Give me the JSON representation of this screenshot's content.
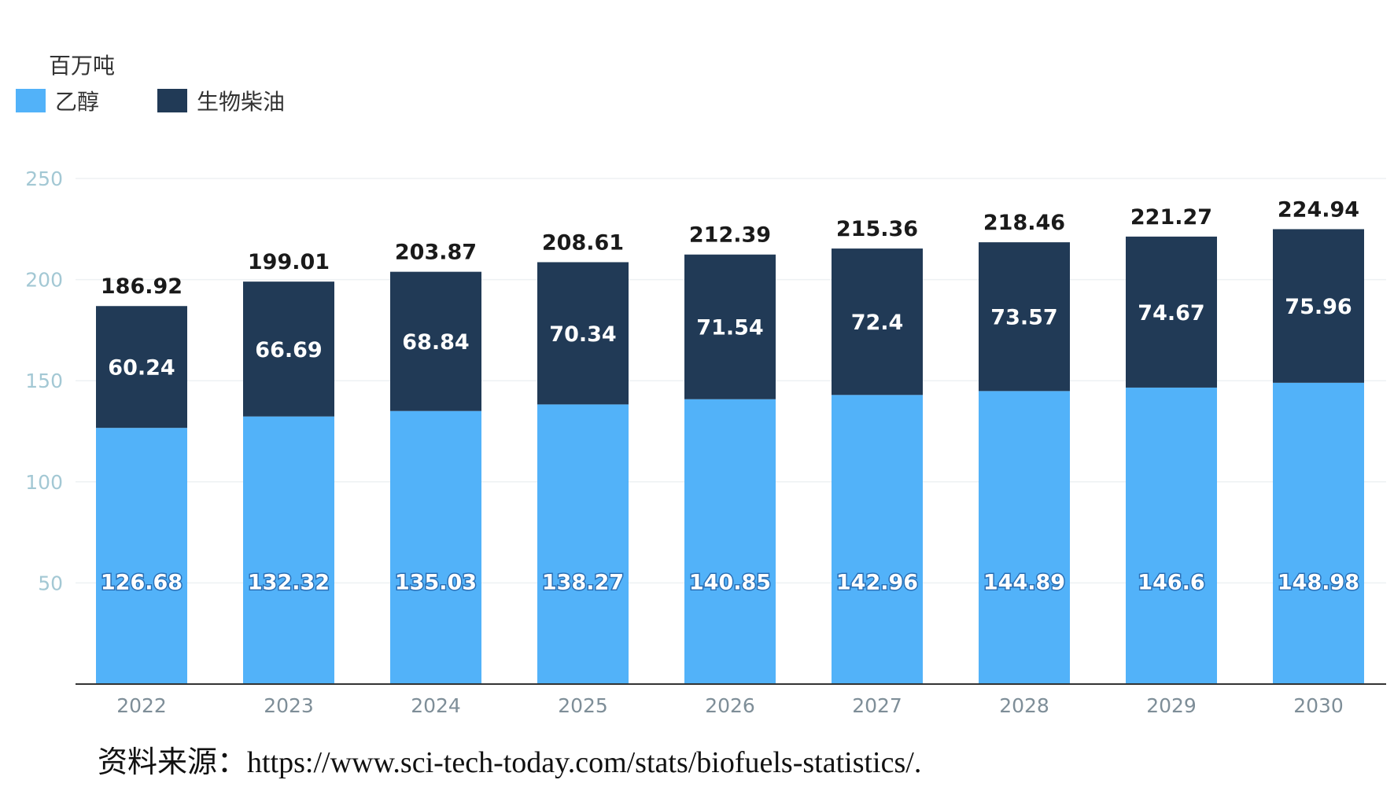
{
  "unit_label": "百万吨",
  "source_text": "资料来源：https://www.sci-tech-today.com/stats/biofuels-statistics/.",
  "colors": {
    "ethanol": "#52b2f9",
    "biodiesel": "#213a56",
    "gridline": "#eef1f3",
    "baseline": "#333333"
  },
  "chart_data": {
    "type": "bar",
    "stacked": true,
    "title": "",
    "xlabel": "",
    "ylabel": "百万吨",
    "ylim": [
      0,
      250
    ],
    "yticks": [
      50,
      100,
      150,
      200,
      250
    ],
    "categories": [
      "2022",
      "2023",
      "2024",
      "2025",
      "2026",
      "2027",
      "2028",
      "2029",
      "2030"
    ],
    "series": [
      {
        "name": "乙醇",
        "color": "#52b2f9",
        "values": [
          126.68,
          132.32,
          135.03,
          138.27,
          140.85,
          142.96,
          144.89,
          146.6,
          148.98
        ],
        "labels": [
          "126.68",
          "132.32",
          "135.03",
          "138.27",
          "140.85",
          "142.96",
          "144.89",
          "146.6",
          "148.98"
        ]
      },
      {
        "name": "生物柴油",
        "color": "#213a56",
        "values": [
          60.24,
          66.69,
          68.84,
          70.34,
          71.54,
          72.4,
          73.57,
          74.67,
          75.96
        ],
        "labels": [
          "60.24",
          "66.69",
          "68.84",
          "70.34",
          "71.54",
          "72.4",
          "73.57",
          "74.67",
          "75.96"
        ]
      }
    ],
    "totals": [
      186.92,
      199.01,
      203.87,
      208.61,
      212.39,
      215.36,
      218.46,
      221.27,
      224.94
    ],
    "total_labels": [
      "186.92",
      "199.01",
      "203.87",
      "208.61",
      "212.39",
      "215.36",
      "218.46",
      "221.27",
      "224.94"
    ],
    "legend_position": "top-left",
    "grid": true
  }
}
